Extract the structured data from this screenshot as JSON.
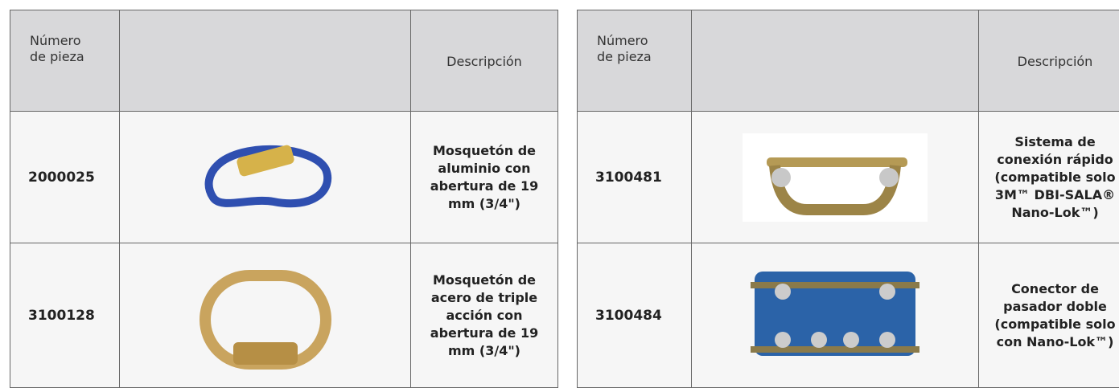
{
  "tables": [
    {
      "header": {
        "part": "Número de pieza",
        "description": "Descripción"
      },
      "rows": [
        {
          "part": "2000025",
          "description": "Mosquetón de aluminio con abertura de 19 mm (3/4\")"
        },
        {
          "part": "3100128",
          "description": "Mosquetón de acero de triple acción con abertura de 19 mm (3/4\")"
        }
      ]
    },
    {
      "header": {
        "part": "Número de pieza",
        "description": "Descripción"
      },
      "rows": [
        {
          "part": "3100481",
          "description": "Sistema de conexión rápido (compatible solo 3M™ DBI-SALA® Nano-Lok™)"
        },
        {
          "part": "3100484",
          "description": "Conector de pasador doble (compatible solo con Nano-Lok™)"
        }
      ]
    }
  ]
}
